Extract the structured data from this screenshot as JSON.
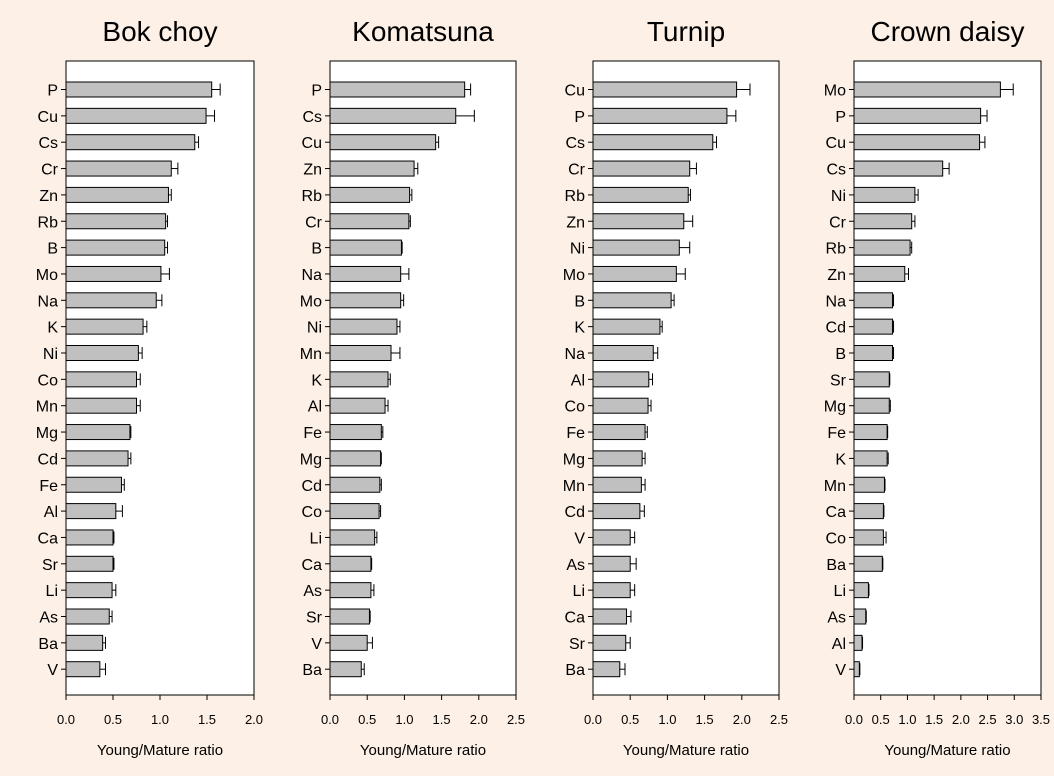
{
  "colors": {
    "page_background": "#fdf0e6",
    "bar_fill": "#c0c0c0",
    "bar_stroke": "#000000"
  },
  "chart_data": [
    {
      "type": "bar",
      "orientation": "horizontal",
      "title": "Bok choy",
      "xlabel": "Young/Mature ratio",
      "xlim": [
        0,
        2.0
      ],
      "xticks": [
        0,
        0.5,
        1.0,
        1.5,
        2.0
      ],
      "xtick_labels": [
        "0.0",
        "0.5",
        "1.0",
        "1.5",
        "2.0"
      ],
      "grid": false,
      "categories": [
        "P",
        "Cu",
        "Cs",
        "Cr",
        "Zn",
        "Rb",
        "B",
        "Mo",
        "Na",
        "K",
        "Ni",
        "Co",
        "Mn",
        "Mg",
        "Cd",
        "Fe",
        "Al",
        "Ca",
        "Sr",
        "Li",
        "As",
        "Ba",
        "V"
      ],
      "values": [
        1.55,
        1.49,
        1.37,
        1.12,
        1.09,
        1.06,
        1.05,
        1.01,
        0.96,
        0.82,
        0.77,
        0.75,
        0.75,
        0.68,
        0.66,
        0.59,
        0.53,
        0.5,
        0.5,
        0.49,
        0.46,
        0.39,
        0.36
      ],
      "errors": [
        0.09,
        0.09,
        0.04,
        0.07,
        0.03,
        0.02,
        0.03,
        0.09,
        0.06,
        0.04,
        0.04,
        0.04,
        0.04,
        0.01,
        0.03,
        0.03,
        0.07,
        0.01,
        0.01,
        0.04,
        0.03,
        0.03,
        0.06
      ]
    },
    {
      "type": "bar",
      "orientation": "horizontal",
      "title": "Komatsuna",
      "xlabel": "Young/Mature ratio",
      "xlim": [
        0,
        2.5
      ],
      "xticks": [
        0,
        0.5,
        1.0,
        1.5,
        2.0,
        2.5
      ],
      "xtick_labels": [
        "0.0",
        "0.5",
        "1.0",
        "1.5",
        "2.0",
        "2.5"
      ],
      "grid": false,
      "categories": [
        "P",
        "Cs",
        "Cu",
        "Zn",
        "Rb",
        "Cr",
        "B",
        "Na",
        "Mo",
        "Ni",
        "Mn",
        "K",
        "Al",
        "Fe",
        "Mg",
        "Cd",
        "Co",
        "Li",
        "Ca",
        "As",
        "Sr",
        "V",
        "Ba"
      ],
      "values": [
        1.81,
        1.69,
        1.42,
        1.13,
        1.07,
        1.06,
        0.96,
        0.95,
        0.95,
        0.9,
        0.82,
        0.78,
        0.74,
        0.69,
        0.68,
        0.67,
        0.66,
        0.6,
        0.55,
        0.55,
        0.53,
        0.5,
        0.42
      ],
      "errors": [
        0.08,
        0.25,
        0.04,
        0.05,
        0.03,
        0.02,
        0.01,
        0.11,
        0.04,
        0.04,
        0.12,
        0.03,
        0.04,
        0.02,
        0.01,
        0.02,
        0.02,
        0.03,
        0.01,
        0.04,
        0.01,
        0.07,
        0.04
      ]
    },
    {
      "type": "bar",
      "orientation": "horizontal",
      "title": "Turnip",
      "xlabel": "Young/Mature ratio",
      "xlim": [
        0,
        2.5
      ],
      "xticks": [
        0,
        0.5,
        1.0,
        1.5,
        2.0,
        2.5
      ],
      "xtick_labels": [
        "0.0",
        "0.5",
        "1.0",
        "1.5",
        "2.0",
        "2.5"
      ],
      "grid": false,
      "categories": [
        "Cu",
        "P",
        "Cs",
        "Cr",
        "Rb",
        "Zn",
        "Ni",
        "Mo",
        "B",
        "K",
        "Na",
        "Al",
        "Co",
        "Fe",
        "Mg",
        "Mn",
        "Cd",
        "V",
        "As",
        "Li",
        "Ca",
        "Sr",
        "Ba"
      ],
      "values": [
        1.93,
        1.8,
        1.61,
        1.3,
        1.28,
        1.22,
        1.16,
        1.12,
        1.05,
        0.9,
        0.81,
        0.75,
        0.74,
        0.7,
        0.66,
        0.65,
        0.63,
        0.5,
        0.5,
        0.5,
        0.45,
        0.44,
        0.36
      ],
      "errors": [
        0.18,
        0.12,
        0.05,
        0.09,
        0.03,
        0.12,
        0.14,
        0.12,
        0.04,
        0.03,
        0.06,
        0.05,
        0.04,
        0.03,
        0.04,
        0.05,
        0.06,
        0.06,
        0.08,
        0.06,
        0.06,
        0.06,
        0.07
      ]
    },
    {
      "type": "bar",
      "orientation": "horizontal",
      "title": "Crown daisy",
      "xlabel": "Young/Mature ratio",
      "xlim": [
        0,
        3.5
      ],
      "xticks": [
        0,
        0.5,
        1.0,
        1.5,
        2.0,
        2.5,
        3.0,
        3.5
      ],
      "xtick_labels": [
        "0.0",
        "0.5",
        "1.0",
        "1.5",
        "2.0",
        "2.5",
        "3.0",
        "3.5"
      ],
      "grid": false,
      "categories": [
        "Mo",
        "P",
        "Cu",
        "Cs",
        "Ni",
        "Cr",
        "Rb",
        "Zn",
        "Na",
        "Cd",
        "B",
        "Sr",
        "Mg",
        "Fe",
        "K",
        "Mn",
        "Ca",
        "Co",
        "Ba",
        "Li",
        "As",
        "Al",
        "V"
      ],
      "values": [
        2.74,
        2.37,
        2.35,
        1.66,
        1.14,
        1.08,
        1.05,
        0.95,
        0.72,
        0.72,
        0.72,
        0.66,
        0.66,
        0.62,
        0.62,
        0.57,
        0.55,
        0.55,
        0.53,
        0.27,
        0.22,
        0.15,
        0.1
      ],
      "errors": [
        0.24,
        0.12,
        0.1,
        0.12,
        0.06,
        0.06,
        0.03,
        0.07,
        0.02,
        0.02,
        0.02,
        0.01,
        0.02,
        0.01,
        0.02,
        0.01,
        0.01,
        0.05,
        0.01,
        0.01,
        0.01,
        0.01,
        0.01
      ]
    }
  ]
}
